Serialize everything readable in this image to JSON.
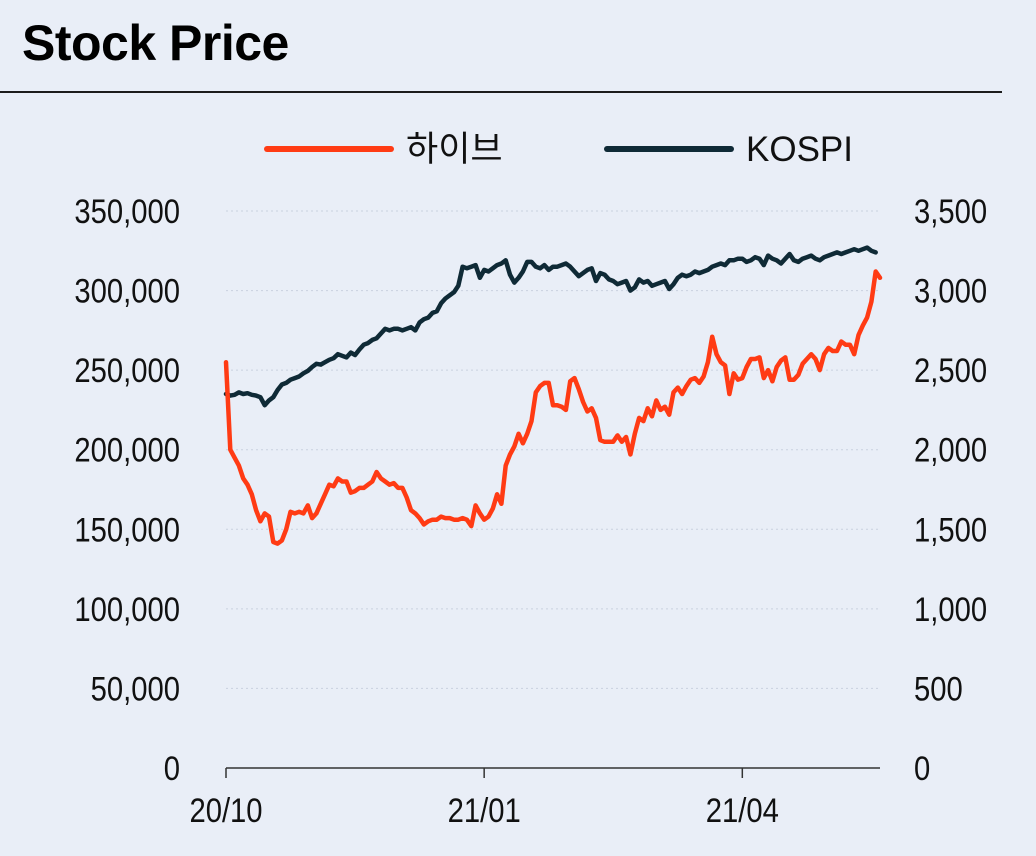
{
  "header": {
    "title": "Stock Price"
  },
  "colors": {
    "series1": "#ff3b14",
    "series2": "#0f2a36",
    "background": "#e9eef7",
    "grid": "#c9d1df",
    "text": "#111111"
  },
  "chart_data": {
    "type": "line",
    "title": "Stock Price",
    "legend": {
      "position": "top-center"
    },
    "x_tick_labels": [
      "20/10",
      "21/01",
      "21/04"
    ],
    "x_tick_index": [
      0,
      60,
      120
    ],
    "y_left": {
      "range": [
        0,
        350000
      ],
      "ticks": [
        "0",
        "50,000",
        "100,000",
        "150,000",
        "200,000",
        "250,000",
        "300,000",
        "350,000"
      ]
    },
    "y_right": {
      "range": [
        0,
        3500
      ],
      "ticks": [
        "0",
        "500",
        "1,000",
        "1,500",
        "2,000",
        "2,500",
        "3,000",
        "3,500"
      ]
    },
    "grid": true,
    "series": [
      {
        "name": "하이브",
        "axis": "left",
        "color": "#ff3b14",
        "values": [
          255000,
          200000,
          195000,
          190000,
          182000,
          178000,
          172000,
          162000,
          155000,
          160000,
          158000,
          142000,
          141000,
          143000,
          150000,
          161000,
          160000,
          161000,
          160000,
          165000,
          157000,
          160000,
          166000,
          172000,
          178000,
          177000,
          182000,
          180000,
          180000,
          173000,
          174000,
          176000,
          176000,
          178000,
          180000,
          186000,
          182000,
          180000,
          178000,
          179000,
          176000,
          176000,
          170000,
          162000,
          160000,
          157000,
          153000,
          155000,
          156000,
          156000,
          158000,
          157000,
          157000,
          156000,
          156000,
          157000,
          156000,
          152000,
          165000,
          160000,
          156000,
          158000,
          163000,
          172000,
          166000,
          190000,
          197000,
          202000,
          210000,
          204000,
          210000,
          218000,
          236000,
          240000,
          242000,
          242000,
          228000,
          228000,
          227000,
          225000,
          243000,
          245000,
          238000,
          230000,
          224000,
          226000,
          220000,
          206000,
          205000,
          205000,
          205000,
          209000,
          205000,
          208000,
          197000,
          210000,
          220000,
          218000,
          226000,
          221000,
          231000,
          225000,
          227000,
          222000,
          236000,
          239000,
          235000,
          240000,
          244000,
          245000,
          242000,
          246000,
          255000,
          271000,
          260000,
          255000,
          253000,
          235000,
          248000,
          244000,
          245000,
          252000,
          257000,
          257000,
          258000,
          245000,
          250000,
          243000,
          252000,
          256000,
          258000,
          244000,
          244000,
          247000,
          254000,
          257000,
          260000,
          257000,
          250000,
          260000,
          264000,
          262000,
          262000,
          268000,
          266000,
          266000,
          260000,
          272000,
          278000,
          283000,
          293000,
          312000,
          308000
        ]
      },
      {
        "name": "KOSPI",
        "axis": "right",
        "color": "#0f2a36",
        "values": [
          2350,
          2340,
          2345,
          2360,
          2350,
          2355,
          2345,
          2340,
          2330,
          2280,
          2310,
          2330,
          2375,
          2410,
          2420,
          2440,
          2450,
          2460,
          2480,
          2495,
          2520,
          2540,
          2535,
          2550,
          2565,
          2575,
          2600,
          2590,
          2580,
          2610,
          2595,
          2630,
          2660,
          2670,
          2690,
          2700,
          2730,
          2760,
          2750,
          2760,
          2760,
          2750,
          2760,
          2770,
          2750,
          2800,
          2820,
          2830,
          2860,
          2870,
          2920,
          2950,
          2970,
          2990,
          3030,
          3150,
          3140,
          3150,
          3160,
          3080,
          3130,
          3120,
          3140,
          3160,
          3170,
          3190,
          3100,
          3050,
          3080,
          3120,
          3180,
          3180,
          3150,
          3140,
          3160,
          3130,
          3150,
          3150,
          3160,
          3170,
          3150,
          3120,
          3090,
          3110,
          3130,
          3140,
          3060,
          3110,
          3100,
          3070,
          3060,
          3040,
          3050,
          3060,
          3000,
          3020,
          3070,
          3050,
          3060,
          3030,
          3040,
          3050,
          3060,
          3010,
          3040,
          3080,
          3100,
          3090,
          3100,
          3120,
          3110,
          3120,
          3130,
          3150,
          3160,
          3170,
          3160,
          3190,
          3190,
          3200,
          3200,
          3180,
          3190,
          3210,
          3200,
          3160,
          3220,
          3200,
          3190,
          3170,
          3200,
          3230,
          3190,
          3180,
          3200,
          3210,
          3220,
          3200,
          3190,
          3210,
          3220,
          3230,
          3240,
          3230,
          3240,
          3250,
          3260,
          3250,
          3260,
          3270,
          3250,
          3240
        ]
      }
    ]
  }
}
